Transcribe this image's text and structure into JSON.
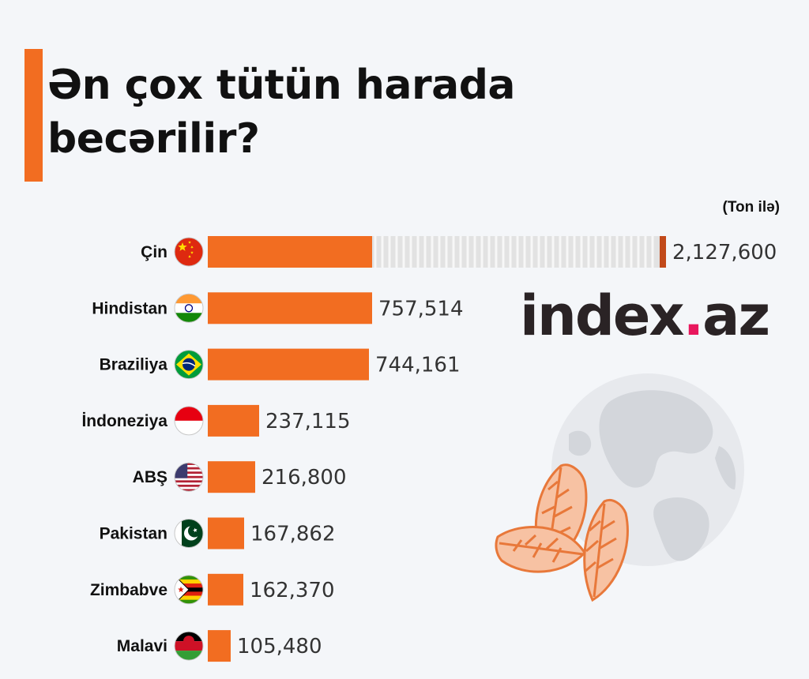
{
  "title": "Ən çox tütün harada becərilir?",
  "unit_note": "(Ton ilə)",
  "logo": {
    "text": "index",
    "dot": ".",
    "suffix": "az",
    "accent": "#e8175d"
  },
  "colors": {
    "bar": "#f26d21",
    "accent": "#f26d21",
    "break_marker": "#c24a1a",
    "break_fill": "#e2e2e2"
  },
  "chart_data": {
    "type": "bar",
    "orientation": "horizontal",
    "categories": [
      "Çin",
      "Hindistan",
      "Braziliya",
      "İndoneziya",
      "ABŞ",
      "Pakistan",
      "Zimbabve",
      "Malavi"
    ],
    "values": [
      2127600,
      757514,
      744161,
      237115,
      216800,
      167862,
      162370,
      105480
    ],
    "value_labels": [
      "2,127,600",
      "757,514",
      "744,161",
      "237,115",
      "216,800",
      "167,862",
      "162,370",
      "105,480"
    ],
    "flags": [
      "china-flag-icon",
      "india-flag-icon",
      "brazil-flag-icon",
      "indonesia-flag-icon",
      "usa-flag-icon",
      "pakistan-flag-icon",
      "zimbabwe-flag-icon",
      "malawi-flag-icon"
    ],
    "axis_break": true,
    "grid": false,
    "legend": "none"
  }
}
